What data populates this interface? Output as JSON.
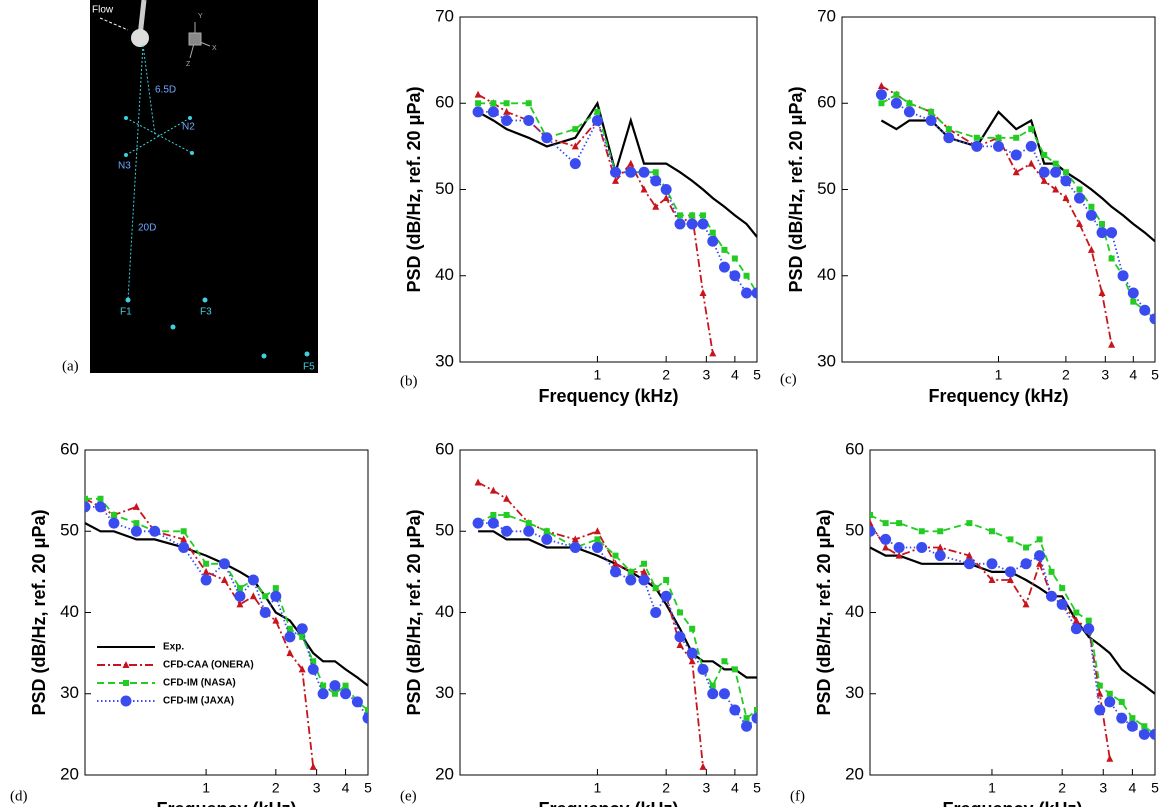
{
  "diagram": {
    "label": "(a)",
    "flow": "Flow",
    "dist1": "6.5D",
    "dist2": "20D",
    "n2": "N2",
    "n3": "N3",
    "f1": "F1",
    "f3": "F3",
    "f5": "F5",
    "ax_y": "Y",
    "ax_x": "X",
    "ax_z": "Z"
  },
  "chart_data": [
    {
      "type": "line",
      "panel_label": "(b)",
      "x_label": "Frequency (kHz)",
      "y_label": "PSD (dB/Hz, ref. 20 μPa)",
      "log_x": true,
      "xlim": [
        0.25,
        5
      ],
      "xticks": [
        1,
        2,
        3,
        4,
        5
      ],
      "ylim": [
        30,
        70
      ],
      "yticks": [
        30,
        40,
        50,
        60,
        70
      ],
      "legend": false,
      "x": [
        0.3,
        0.35,
        0.4,
        0.5,
        0.6,
        0.8,
        1.0,
        1.2,
        1.4,
        1.6,
        1.8,
        2.0,
        2.3,
        2.6,
        2.9,
        3.2,
        3.6,
        4.0,
        4.5,
        5.0
      ],
      "series": [
        {
          "color": "#000000",
          "style": "solid",
          "marker": "none",
          "values": [
            59,
            58,
            57,
            56,
            55,
            56,
            60,
            52,
            58,
            53,
            53,
            53,
            52,
            51,
            50,
            49,
            48,
            47,
            46,
            44.5
          ]
        },
        {
          "color": "#c8141c",
          "style": "dashdot",
          "marker": "triangle",
          "values": [
            61,
            60,
            59,
            58,
            56,
            55,
            58,
            51,
            53,
            50,
            48,
            49,
            46,
            47,
            38,
            31,
            null,
            null,
            null,
            null
          ]
        },
        {
          "color": "#22cc22",
          "style": "dashed",
          "marker": "square",
          "values": [
            60,
            60,
            60,
            60,
            56,
            57,
            59,
            52,
            52,
            52,
            52,
            50,
            47,
            47,
            47,
            45,
            43,
            42,
            40,
            38
          ]
        },
        {
          "color": "#3a4cf0",
          "style": "dotted",
          "marker": "circle",
          "values": [
            59,
            59,
            58,
            58,
            56,
            53,
            58,
            52,
            52,
            52,
            51,
            50,
            46,
            46,
            46,
            44,
            41,
            40,
            38,
            38
          ]
        }
      ]
    },
    {
      "type": "line",
      "panel_label": "(c)",
      "x_label": "Frequency (kHz)",
      "y_label": "PSD (dB/Hz, ref. 20 μPa)",
      "log_x": true,
      "xlim": [
        0.2,
        5
      ],
      "xticks": [
        1,
        2,
        3,
        4,
        5
      ],
      "ylim": [
        30,
        70
      ],
      "yticks": [
        30,
        40,
        50,
        60,
        70
      ],
      "legend": false,
      "x": [
        0.3,
        0.35,
        0.4,
        0.5,
        0.6,
        0.8,
        1.0,
        1.2,
        1.4,
        1.6,
        1.8,
        2.0,
        2.3,
        2.6,
        2.9,
        3.2,
        3.6,
        4.0,
        4.5,
        5.0
      ],
      "series": [
        {
          "color": "#000000",
          "style": "solid",
          "marker": "none",
          "values": [
            58,
            57,
            58,
            58,
            56,
            55,
            59,
            57,
            58,
            53,
            53,
            52,
            51,
            50,
            49,
            48,
            47,
            46,
            45,
            44
          ]
        },
        {
          "color": "#c8141c",
          "style": "dashdot",
          "marker": "triangle",
          "values": [
            62,
            61,
            60,
            59,
            57,
            55,
            56,
            52,
            53,
            51,
            50,
            49,
            46,
            43,
            38,
            32,
            null,
            null,
            null,
            null
          ]
        },
        {
          "color": "#22cc22",
          "style": "dashed",
          "marker": "square",
          "values": [
            60,
            61,
            60,
            59,
            57,
            56,
            56,
            56,
            57,
            54,
            53,
            52,
            50,
            48,
            46,
            42,
            40,
            37,
            36,
            35
          ]
        },
        {
          "color": "#3a4cf0",
          "style": "dotted",
          "marker": "circle",
          "values": [
            61,
            60,
            59,
            58,
            56,
            55,
            55,
            54,
            55,
            52,
            52,
            51,
            49,
            47,
            45,
            45,
            40,
            38,
            36,
            35
          ]
        }
      ]
    },
    {
      "type": "line",
      "panel_label": "(d)",
      "x_label": "Frequency (kHz)",
      "y_label": "PSD (dB/Hz, ref. 20 μPa)",
      "log_x": true,
      "xlim": [
        0.3,
        5
      ],
      "xticks": [
        1,
        2,
        3,
        4,
        5
      ],
      "ylim": [
        20,
        60
      ],
      "yticks": [
        20,
        30,
        40,
        50,
        60
      ],
      "legend": true,
      "x": [
        0.3,
        0.35,
        0.4,
        0.5,
        0.6,
        0.8,
        1.0,
        1.2,
        1.4,
        1.6,
        1.8,
        2.0,
        2.3,
        2.6,
        2.9,
        3.2,
        3.6,
        4.0,
        4.5,
        5.0
      ],
      "series": [
        {
          "name": "Exp.",
          "color": "#000000",
          "style": "solid",
          "marker": "none",
          "values": [
            51,
            50,
            50,
            49,
            49,
            48,
            47,
            46,
            45,
            44,
            42,
            40,
            39,
            37,
            35,
            34,
            34,
            33,
            32,
            31
          ]
        },
        {
          "name": "CFD-CAA (ONERA)",
          "color": "#c8141c",
          "style": "dashdot",
          "marker": "triangle",
          "values": [
            54,
            53,
            52,
            53,
            50,
            49,
            45,
            44,
            41,
            42,
            40,
            39,
            35,
            33,
            21,
            null,
            null,
            null,
            null,
            null
          ]
        },
        {
          "name": "CFD-IM (NASA)",
          "color": "#22cc22",
          "style": "dashed",
          "marker": "square",
          "values": [
            54,
            54,
            52,
            51,
            50,
            50,
            46,
            46,
            43,
            44,
            42,
            43,
            38,
            37,
            34,
            31,
            30,
            31,
            29,
            28
          ]
        },
        {
          "name": "CFD-IM (JAXA)",
          "color": "#3a4cf0",
          "style": "dotted",
          "marker": "circle",
          "values": [
            53,
            53,
            51,
            50,
            50,
            48,
            44,
            46,
            42,
            44,
            40,
            42,
            37,
            38,
            33,
            30,
            31,
            30,
            29,
            27
          ]
        }
      ]
    },
    {
      "type": "line",
      "panel_label": "(e)",
      "x_label": "Frequency (kHz)",
      "y_label": "PSD (dB/Hz, ref. 20 μPa)",
      "log_x": true,
      "xlim": [
        0.25,
        5
      ],
      "xticks": [
        1,
        2,
        3,
        4,
        5
      ],
      "ylim": [
        20,
        60
      ],
      "yticks": [
        20,
        30,
        40,
        50,
        60
      ],
      "legend": false,
      "x": [
        0.3,
        0.35,
        0.4,
        0.5,
        0.6,
        0.8,
        1.0,
        1.2,
        1.4,
        1.6,
        1.8,
        2.0,
        2.3,
        2.6,
        2.9,
        3.2,
        3.6,
        4.0,
        4.5,
        5.0
      ],
      "series": [
        {
          "color": "#000000",
          "style": "solid",
          "marker": "none",
          "values": [
            50,
            50,
            49,
            49,
            48,
            48,
            47,
            46,
            45,
            44,
            43,
            41,
            38,
            35,
            34,
            34,
            33,
            33,
            32,
            32
          ]
        },
        {
          "color": "#c8141c",
          "style": "dashdot",
          "marker": "triangle",
          "values": [
            56,
            55,
            54,
            51,
            50,
            49,
            50,
            46,
            45,
            45,
            43,
            42,
            36,
            34,
            21,
            null,
            null,
            null,
            null,
            null
          ]
        },
        {
          "color": "#22cc22",
          "style": "dashed",
          "marker": "square",
          "values": [
            51,
            52,
            52,
            51,
            50,
            48,
            49,
            47,
            45,
            46,
            43,
            44,
            40,
            38,
            33,
            31,
            34,
            33,
            27,
            28
          ]
        },
        {
          "color": "#3a4cf0",
          "style": "dotted",
          "marker": "circle",
          "values": [
            51,
            51,
            50,
            50,
            49,
            48,
            48,
            45,
            44,
            44,
            40,
            42,
            37,
            35,
            33,
            30,
            30,
            28,
            26,
            27
          ]
        }
      ]
    },
    {
      "type": "line",
      "panel_label": "(f)",
      "x_label": "Frequency (kHz)",
      "y_label": "PSD (dB/Hz, ref. 20 μPa)",
      "log_x": true,
      "xlim": [
        0.3,
        5
      ],
      "xticks": [
        1,
        2,
        3,
        4,
        5
      ],
      "ylim": [
        20,
        60
      ],
      "yticks": [
        20,
        30,
        40,
        50,
        60
      ],
      "legend": false,
      "x": [
        0.3,
        0.35,
        0.4,
        0.5,
        0.6,
        0.8,
        1.0,
        1.2,
        1.4,
        1.6,
        1.8,
        2.0,
        2.3,
        2.6,
        2.9,
        3.2,
        3.6,
        4.0,
        4.5,
        5.0
      ],
      "series": [
        {
          "color": "#000000",
          "style": "solid",
          "marker": "none",
          "values": [
            48,
            47,
            47,
            46,
            46,
            46,
            45,
            45,
            44,
            43,
            42,
            42,
            39,
            37,
            36,
            35,
            33,
            32,
            31,
            30
          ]
        },
        {
          "color": "#c8141c",
          "style": "dashdot",
          "marker": "triangle",
          "values": [
            51,
            48,
            47,
            48,
            48,
            47,
            44,
            44,
            41,
            46,
            42,
            41,
            39,
            38,
            30,
            22,
            null,
            null,
            null,
            null
          ]
        },
        {
          "color": "#22cc22",
          "style": "dashed",
          "marker": "square",
          "values": [
            52,
            51,
            51,
            50,
            50,
            51,
            50,
            49,
            48,
            49,
            45,
            43,
            40,
            39,
            31,
            30,
            29,
            27,
            26,
            25
          ]
        },
        {
          "color": "#3a4cf0",
          "style": "dotted",
          "marker": "circle",
          "values": [
            50,
            49,
            48,
            48,
            47,
            46,
            46,
            45,
            46,
            47,
            42,
            41,
            38,
            38,
            28,
            29,
            27,
            26,
            25,
            25
          ]
        }
      ]
    }
  ]
}
